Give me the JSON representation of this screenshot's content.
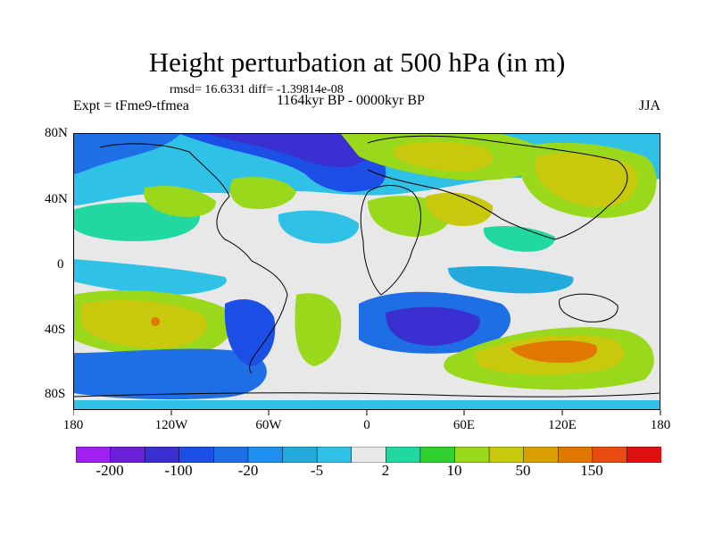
{
  "title": "Height perturbation at 500 hPa (in m)",
  "stats": "rmsd= 16.6331 diff= -1.39814e-08",
  "left_label": "Expt = tFme9-tfmea",
  "center_label": "1164kyr BP - 0000kyr BP",
  "right_label": "JJA",
  "y_axis_labels": [
    "80N",
    "40N",
    "0",
    "40S",
    "80S"
  ],
  "x_axis_labels": [
    "180",
    "120W",
    "60W",
    "0",
    "60E",
    "120E",
    "180"
  ],
  "colorbar": {
    "labels": [
      "-200",
      "-100",
      "-20",
      "-5",
      "2",
      "10",
      "50",
      "150"
    ],
    "colors": [
      "#a020f0",
      "#6a1fd8",
      "#3a2fd0",
      "#1c4fe6",
      "#1e6fe6",
      "#2090f0",
      "#22aadd",
      "#30c2e6",
      "#e8e8e8",
      "#20d8a0",
      "#30d030",
      "#9ad81c",
      "#c8c80c",
      "#d8a000",
      "#e07800",
      "#e84c10",
      "#e01010"
    ]
  }
}
